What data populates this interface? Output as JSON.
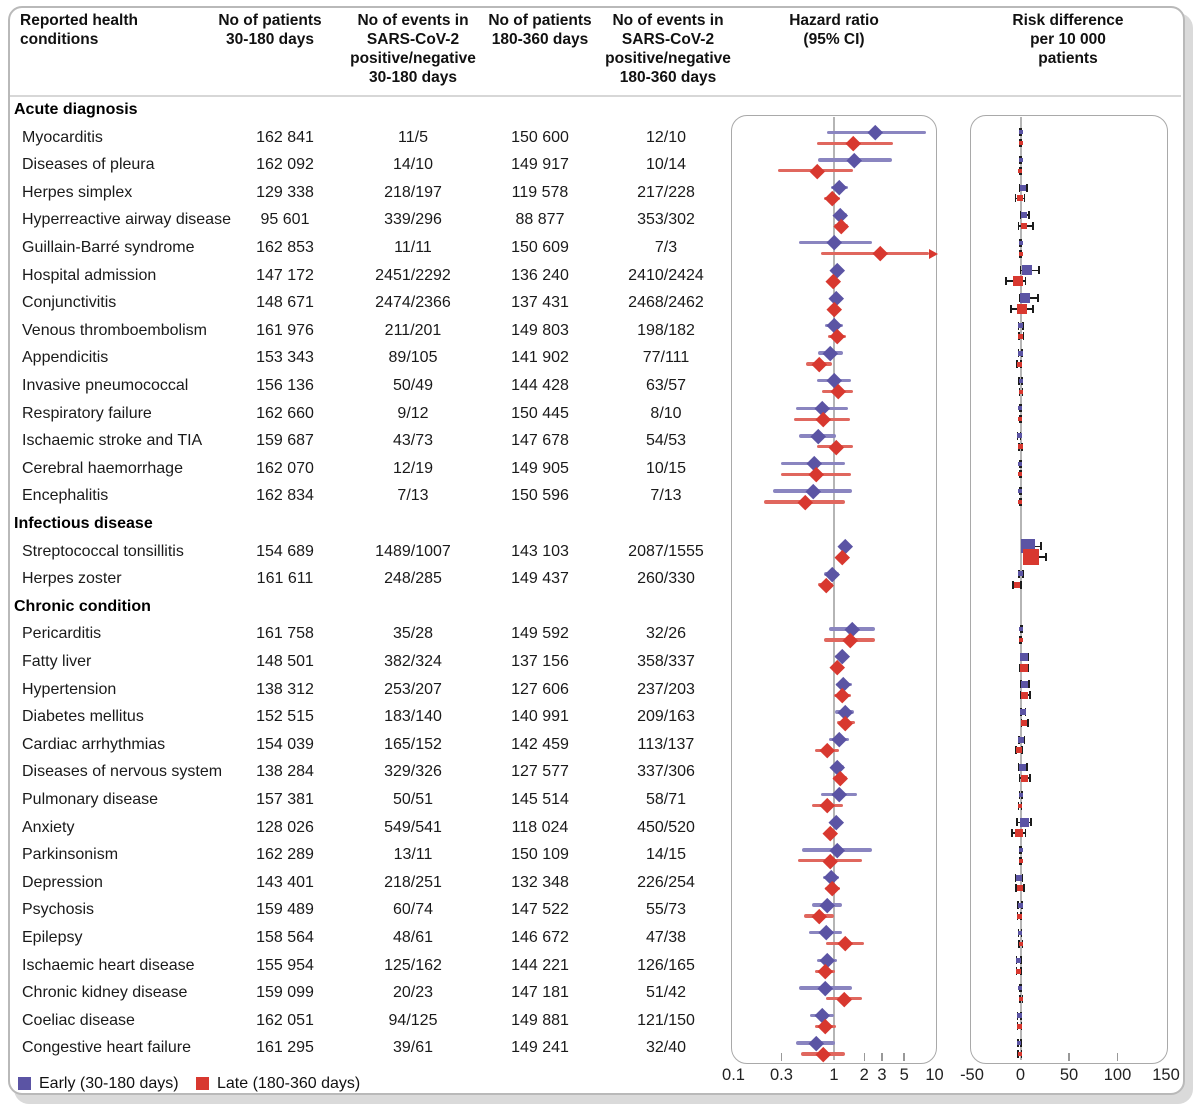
{
  "header": {
    "condition": "Reported health\nconditions",
    "n_early": "No of patients\n30-180 days",
    "events_early": "No of events in\nSARS-CoV-2\npositive/negative\n30-180 days",
    "n_late": "No of patients\n180-360 days",
    "events_late": "No of events in\nSARS-CoV-2\npositive/negative\n180-360 days",
    "hazard": "Hazard ratio\n(95% CI)",
    "risk": "Risk difference\nper 10 000\npatients"
  },
  "legend": [
    {
      "label": "Early (30-180 days)",
      "color": "#5b54a4"
    },
    {
      "label": "Late (180-360 days)",
      "color": "#d8382f"
    }
  ],
  "colors": {
    "early": "#5b54a4",
    "early_line": "#8a85c0",
    "late": "#d8382f",
    "late_line": "#e0675e",
    "ref_line": "#b5b5b5"
  },
  "chart_data": {
    "type": "forest",
    "hazard_axis": {
      "scale": "log",
      "min": 0.1,
      "max": 10,
      "reference": 1,
      "ticks": [
        [
          0.1,
          "0.1"
        ],
        [
          0.3,
          "0.3"
        ],
        [
          1,
          "1"
        ],
        [
          2,
          "2"
        ],
        [
          3,
          "3"
        ],
        [
          5,
          "5"
        ],
        [
          10,
          "10"
        ]
      ],
      "inner_tick_marks": [
        0.3,
        2,
        3,
        5
      ]
    },
    "risk_axis": {
      "scale": "linear",
      "min": -50,
      "max": 150,
      "reference": 0,
      "ticks": [
        [
          -50,
          "-50"
        ],
        [
          0,
          "0"
        ],
        [
          50,
          "50"
        ],
        [
          100,
          "100"
        ],
        [
          150,
          "150"
        ]
      ],
      "inner_tick_marks": [
        50,
        100
      ]
    },
    "series_note": "hr1/rd1 = Early (30-180 days), hr2/rd2 = Late (180-360 days); hr=[estimate,lo,hi], rd=[estimate,lo,hi,marker_px]",
    "rows": [
      {
        "section": "Acute diagnosis"
      },
      {
        "name": "Myocarditis",
        "n1": "162 841",
        "e1": "11/5",
        "n2": "150 600",
        "e2": "12/10",
        "hr1": [
          2.55,
          0.85,
          8.2
        ],
        "hr2": [
          1.55,
          0.67,
          3.9
        ],
        "rd1": [
          0.3,
          -0.3,
          1.0,
          4
        ],
        "rd2": [
          0.2,
          -0.5,
          0.9,
          4
        ]
      },
      {
        "name": "Diseases of pleura",
        "n1": "162 092",
        "e1": "14/10",
        "n2": "149 917",
        "e2": "10/14",
        "hr1": [
          1.6,
          0.7,
          3.8
        ],
        "hr2": [
          0.68,
          0.28,
          1.55
        ],
        "rd1": [
          0.2,
          -0.4,
          0.8,
          4
        ],
        "rd2": [
          -0.2,
          -0.8,
          0.5,
          4
        ]
      },
      {
        "name": "Herpes simplex",
        "n1": "129 338",
        "e1": "218/197",
        "n2": "119 578",
        "e2": "217/228",
        "hr1": [
          1.13,
          0.93,
          1.37
        ],
        "hr2": [
          0.96,
          0.79,
          1.15
        ],
        "rd1": [
          3,
          -1,
          7,
          6
        ],
        "rd2": [
          -0.5,
          -5,
          4,
          6
        ]
      },
      {
        "name": "Hyperreactive airway disease",
        "n1": "95 601",
        "e1": "339/296",
        "n2": "88 877",
        "e2": "353/302",
        "hr1": [
          1.15,
          0.99,
          1.35
        ],
        "hr2": [
          1.18,
          1.01,
          1.38
        ],
        "rd1": [
          4,
          0,
          9,
          6
        ],
        "rd2": [
          4,
          -2,
          13,
          6
        ]
      },
      {
        "name": "Guillain-Barré syndrome",
        "n1": "162 853",
        "e1": "11/11",
        "n2": "150 609",
        "e2": "7/3",
        "hr1": [
          1.0,
          0.45,
          2.4
        ],
        "hr2": [
          2.9,
          0.75,
          10
        ],
        "hr2_arrow": true,
        "rd1": [
          0.1,
          -0.5,
          0.7,
          4
        ],
        "rd2": [
          0.3,
          -0.3,
          1.0,
          4
        ]
      },
      {
        "name": "Hospital admission",
        "n1": "147 172",
        "e1": "2451/2292",
        "n2": "136 240",
        "e2": "2410/2424",
        "hr1": [
          1.07,
          1.01,
          1.13
        ],
        "hr2": [
          0.99,
          0.93,
          1.05
        ],
        "rd1": [
          7,
          0,
          19,
          10
        ],
        "rd2": [
          -3,
          -15,
          5,
          10
        ]
      },
      {
        "name": "Conjunctivitis",
        "n1": "148 671",
        "e1": "2474/2366",
        "n2": "137 431",
        "e2": "2468/2462",
        "hr1": [
          1.05,
          0.99,
          1.11
        ],
        "hr2": [
          1.0,
          0.94,
          1.06
        ],
        "rd1": [
          5,
          -1,
          18,
          10
        ],
        "rd2": [
          2,
          -10,
          13,
          10
        ]
      },
      {
        "name": "Venous thromboembolism",
        "n1": "161 976",
        "e1": "211/201",
        "n2": "149 803",
        "e2": "198/182",
        "hr1": [
          1.0,
          0.82,
          1.22
        ],
        "hr2": [
          1.07,
          0.87,
          1.31
        ],
        "rd1": [
          0.2,
          -2,
          2.5,
          5
        ],
        "rd2": [
          0.5,
          -1.8,
          3,
          5
        ]
      },
      {
        "name": "Appendicitis",
        "n1": "153 343",
        "e1": "89/105",
        "n2": "141 902",
        "e2": "77/111",
        "hr1": [
          0.92,
          0.69,
          1.22
        ],
        "hr2": [
          0.71,
          0.53,
          0.96
        ],
        "rd1": [
          -0.3,
          -2,
          1.5,
          5
        ],
        "rd2": [
          -1.5,
          -3.5,
          0.3,
          5
        ]
      },
      {
        "name": "Invasive pneumococcal",
        "n1": "156 136",
        "e1": "50/49",
        "n2": "144 428",
        "e2": "63/57",
        "hr1": [
          1.0,
          0.67,
          1.49
        ],
        "hr2": [
          1.09,
          0.76,
          1.56
        ],
        "rd1": [
          0,
          -1.3,
          1.3,
          4
        ],
        "rd2": [
          0.4,
          -1.1,
          1.9,
          4
        ]
      },
      {
        "name": "Respiratory failure",
        "n1": "162 660",
        "e1": "9/12",
        "n2": "150 445",
        "e2": "8/10",
        "hr1": [
          0.76,
          0.42,
          1.38
        ],
        "hr2": [
          0.78,
          0.4,
          1.45
        ],
        "rd1": [
          -0.1,
          -0.7,
          0.5,
          4
        ],
        "rd2": [
          -0.1,
          -0.7,
          0.6,
          4
        ]
      },
      {
        "name": "Ischaemic stroke and TIA",
        "n1": "159 687",
        "e1": "43/73",
        "n2": "147 678",
        "e2": "54/53",
        "hr1": [
          0.7,
          0.45,
          1.05
        ],
        "hr2": [
          1.05,
          0.68,
          1.55
        ],
        "rd1": [
          -1.5,
          -3,
          -0.2,
          5
        ],
        "rd2": [
          0,
          -1.5,
          1.5,
          5
        ]
      },
      {
        "name": "Cerebral haemorrhage",
        "n1": "162 070",
        "e1": "12/19",
        "n2": "149 905",
        "e2": "10/15",
        "hr1": [
          0.63,
          0.3,
          1.28
        ],
        "hr2": [
          0.67,
          0.3,
          1.47
        ],
        "rd1": [
          -0.3,
          -1,
          0.4,
          4
        ],
        "rd2": [
          -0.3,
          -1,
          0.4,
          4
        ]
      },
      {
        "name": "Encephalitis",
        "n1": "162 834",
        "e1": "7/13",
        "n2": "150 596",
        "e2": "7/13",
        "hr1": [
          0.62,
          0.25,
          1.5
        ],
        "hr2": [
          0.52,
          0.2,
          1.3
        ],
        "rd1": [
          -0.2,
          -0.8,
          0.4,
          4
        ],
        "rd2": [
          -0.2,
          -0.8,
          0.4,
          4
        ]
      },
      {
        "section": "Infectious disease"
      },
      {
        "name": "Streptococcal tonsillitis",
        "n1": "154 689",
        "e1": "1489/1007",
        "n2": "143 103",
        "e2": "2087/1555",
        "hr1": [
          1.3,
          1.2,
          1.42
        ],
        "hr2": [
          1.22,
          1.14,
          1.3
        ],
        "rd1": [
          8,
          2,
          21,
          14
        ],
        "rd2": [
          11,
          5,
          26,
          16
        ]
      },
      {
        "name": "Herpes zoster",
        "n1": "161 611",
        "e1": "248/285",
        "n2": "149 437",
        "e2": "260/330",
        "hr1": [
          0.95,
          0.8,
          1.13
        ],
        "hr2": [
          0.83,
          0.7,
          0.98
        ],
        "rd1": [
          0.3,
          -1.7,
          2.3,
          5
        ],
        "rd2": [
          -3.5,
          -8,
          0.5,
          6
        ]
      },
      {
        "section": "Chronic condition"
      },
      {
        "name": "Pericarditis",
        "n1": "161 758",
        "e1": "35/28",
        "n2": "149 592",
        "e2": "32/26",
        "hr1": [
          1.52,
          0.9,
          2.55
        ],
        "hr2": [
          1.45,
          0.8,
          2.55
        ],
        "rd1": [
          0.5,
          -0.2,
          1.3,
          4
        ],
        "rd2": [
          0.4,
          -0.3,
          1.2,
          4
        ]
      },
      {
        "name": "Fatty liver",
        "n1": "148 501",
        "e1": "382/324",
        "n2": "137 156",
        "e2": "358/337",
        "hr1": [
          1.2,
          1.03,
          1.39
        ],
        "hr2": [
          1.08,
          0.93,
          1.26
        ],
        "rd1": [
          4,
          0.5,
          8,
          8
        ],
        "rd2": [
          3.5,
          -1,
          8,
          8
        ]
      },
      {
        "name": "Hypertension",
        "n1": "138 312",
        "e1": "253/207",
        "n2": "127 606",
        "e2": "237/203",
        "hr1": [
          1.25,
          1.04,
          1.51
        ],
        "hr2": [
          1.22,
          1.01,
          1.48
        ],
        "rd1": [
          4,
          0.5,
          8.5,
          7
        ],
        "rd2": [
          4,
          0,
          9.5,
          7
        ]
      },
      {
        "name": "Diabetes mellitus",
        "n1": "152 515",
        "e1": "183/140",
        "n2": "140 991",
        "e2": "209/163",
        "hr1": [
          1.28,
          1.02,
          1.59
        ],
        "hr2": [
          1.3,
          1.06,
          1.6
        ],
        "rd1": [
          2.5,
          0.3,
          5,
          6
        ],
        "rd2": [
          4,
          1,
          7.5,
          6
        ]
      },
      {
        "name": "Cardiac arrhythmias",
        "n1": "154 039",
        "e1": "165/152",
        "n2": "142 459",
        "e2": "113/137",
        "hr1": [
          1.12,
          0.9,
          1.4
        ],
        "hr2": [
          0.85,
          0.64,
          1.12
        ],
        "rd1": [
          1,
          -1.5,
          4,
          6
        ],
        "rd2": [
          -1.5,
          -4.5,
          1.5,
          6
        ]
      },
      {
        "name": "Diseases of nervous system",
        "n1": "138 284",
        "e1": "329/326",
        "n2": "127 577",
        "e2": "337/306",
        "hr1": [
          1.08,
          0.93,
          1.26
        ],
        "hr2": [
          1.15,
          0.98,
          1.34
        ],
        "rd1": [
          2,
          -2,
          6.5,
          7
        ],
        "rd2": [
          4,
          -1,
          9.5,
          7
        ]
      },
      {
        "name": "Pulmonary disease",
        "n1": "157 381",
        "e1": "50/51",
        "n2": "145 514",
        "e2": "58/71",
        "hr1": [
          1.12,
          0.74,
          1.7
        ],
        "hr2": [
          0.86,
          0.6,
          1.24
        ],
        "rd1": [
          0.2,
          -1,
          1.5,
          4
        ],
        "rd2": [
          -0.5,
          -2,
          1,
          4
        ]
      },
      {
        "name": "Anxiety",
        "n1": "128 026",
        "e1": "549/541",
        "n2": "118 024",
        "e2": "450/520",
        "hr1": [
          1.05,
          0.93,
          1.18
        ],
        "hr2": [
          0.92,
          0.81,
          1.05
        ],
        "rd1": [
          4.5,
          -3.5,
          11,
          9
        ],
        "rd2": [
          -2,
          -8.5,
          5,
          8
        ]
      },
      {
        "name": "Parkinsonism",
        "n1": "162 289",
        "e1": "13/11",
        "n2": "150 109",
        "e2": "14/15",
        "hr1": [
          1.07,
          0.48,
          2.38
        ],
        "hr2": [
          0.91,
          0.44,
          1.88
        ],
        "rd1": [
          0.1,
          -0.5,
          0.8,
          4
        ],
        "rd2": [
          0,
          -0.7,
          0.7,
          4
        ]
      },
      {
        "name": "Depression",
        "n1": "143 401",
        "e1": "218/251",
        "n2": "132 348",
        "e2": "226/254",
        "hr1": [
          0.93,
          0.78,
          1.12
        ],
        "hr2": [
          0.97,
          0.81,
          1.16
        ],
        "rd1": [
          -1.5,
          -5,
          2,
          6
        ],
        "rd2": [
          -0.5,
          -4.5,
          3.5,
          6
        ]
      },
      {
        "name": "Psychosis",
        "n1": "159 489",
        "e1": "60/74",
        "n2": "147 522",
        "e2": "55/73",
        "hr1": [
          0.86,
          0.61,
          1.21
        ],
        "hr2": [
          0.71,
          0.5,
          1.01
        ],
        "rd1": [
          -0.5,
          -2.3,
          1.3,
          5
        ],
        "rd2": [
          -1.2,
          -3,
          0.5,
          5
        ]
      },
      {
        "name": "Epilepsy",
        "n1": "158 564",
        "e1": "48/61",
        "n2": "146 672",
        "e2": "47/38",
        "hr1": [
          0.83,
          0.57,
          1.21
        ],
        "hr2": [
          1.28,
          0.83,
          1.97
        ],
        "rd1": [
          -0.5,
          -2,
          1,
          4
        ],
        "rd2": [
          0.3,
          -1.3,
          2,
          4
        ]
      },
      {
        "name": "Ischaemic heart disease",
        "n1": "155 954",
        "e1": "125/162",
        "n2": "144 221",
        "e2": "126/165",
        "hr1": [
          0.85,
          0.67,
          1.08
        ],
        "hr2": [
          0.81,
          0.64,
          1.02
        ],
        "rd1": [
          -1.8,
          -4,
          0.5,
          5
        ],
        "rd2": [
          -1.8,
          -4,
          0.3,
          5
        ]
      },
      {
        "name": "Chronic kidney disease",
        "n1": "159 099",
        "e1": "20/23",
        "n2": "147 181",
        "e2": "51/42",
        "hr1": [
          0.82,
          0.45,
          1.5
        ],
        "hr2": [
          1.27,
          0.84,
          1.92
        ],
        "rd1": [
          -0.2,
          -1.2,
          0.8,
          4
        ],
        "rd2": [
          0.5,
          -0.8,
          2,
          4
        ]
      },
      {
        "name": "Coeliac disease",
        "n1": "162 051",
        "e1": "94/125",
        "n2": "149 881",
        "e2": "121/150",
        "hr1": [
          0.76,
          0.58,
          0.99
        ],
        "hr2": [
          0.82,
          0.64,
          1.04
        ],
        "rd1": [
          -1.2,
          -3,
          0.5,
          5
        ],
        "rd2": [
          -1,
          -3,
          1,
          5
        ]
      },
      {
        "name": "Congestive heart failure",
        "n1": "161 295",
        "e1": "39/61",
        "n2": "149 241",
        "e2": "32/40",
        "hr1": [
          0.66,
          0.42,
          1.02
        ],
        "hr2": [
          0.78,
          0.47,
          1.28
        ],
        "rd1": [
          -1.2,
          -2.8,
          0.3,
          4
        ],
        "rd2": [
          -0.8,
          -2.5,
          1,
          4
        ]
      }
    ]
  }
}
